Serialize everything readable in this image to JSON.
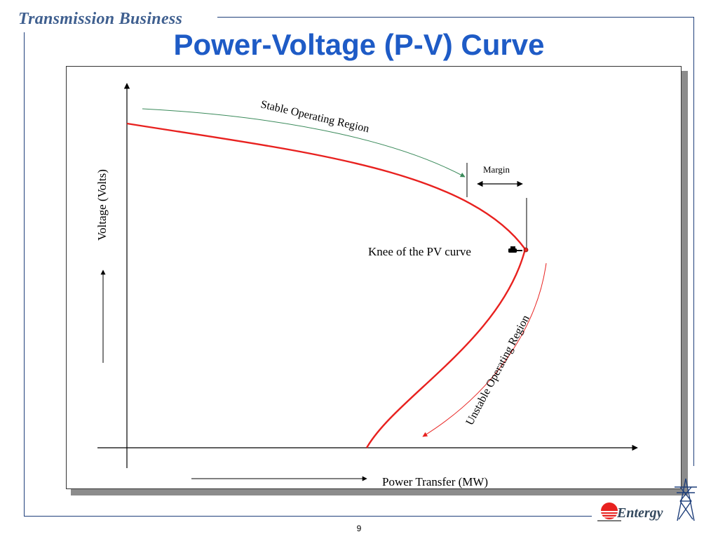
{
  "header": {
    "title": "Transmission Business"
  },
  "slide": {
    "title": "Power-Voltage (P-V) Curve",
    "page_number": "9"
  },
  "diagram": {
    "y_axis_label": "Voltage (Volts)",
    "x_axis_label": "Power Transfer (MW)",
    "stable_region_label": "Stable Operating Region",
    "unstable_region_label": "Unstable Operating Region",
    "margin_label": "Margin",
    "knee_label": "Knee of the PV curve",
    "colors": {
      "curve": "#e8211f",
      "stable_arrow": "#3a8a5a",
      "unstable_arrow": "#e8211f",
      "axis": "#000000"
    }
  },
  "logo": {
    "name": "Entergy"
  },
  "colors": {
    "title": "#1e5bc6",
    "header": "#3f5f8f",
    "frame": "#1f3f7a"
  }
}
